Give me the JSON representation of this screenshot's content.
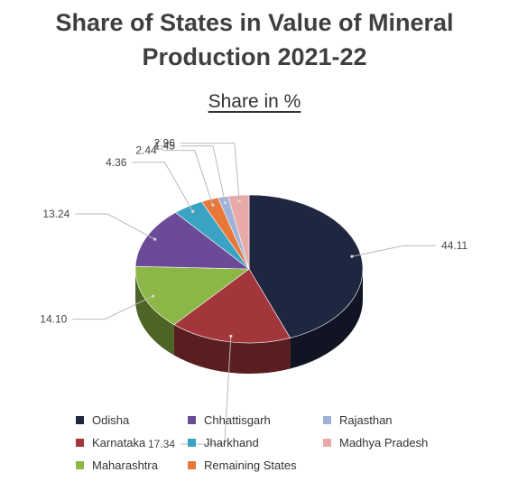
{
  "chart_data": {
    "type": "pie",
    "title": "Share of States in Value of Mineral Production 2021-22",
    "title_lines": [
      "Share of States in Value of Mineral",
      "Production 2021-22"
    ],
    "subtitle": "Share in %",
    "slices": [
      {
        "label": "Odisha",
        "value": 44.11,
        "value_text": "44.11",
        "color": "#1f2640"
      },
      {
        "label": "Karnataka",
        "value": 17.34,
        "value_text": "17.34",
        "color": "#a3363a"
      },
      {
        "label": "Maharashtra",
        "value": 14.1,
        "value_text": "14.10",
        "color": "#8cb646"
      },
      {
        "label": "Chhattisgarh",
        "value": 13.24,
        "value_text": "13.24",
        "color": "#6b4a98"
      },
      {
        "label": "Jharkhand",
        "value": 4.36,
        "value_text": "4.36",
        "color": "#3aa3c4"
      },
      {
        "label": "Remaining States",
        "value": 2.44,
        "value_text": "2.44",
        "color": "#e9773a"
      },
      {
        "label": "Rajasthan",
        "value": 1.45,
        "value_text": "1.45",
        "color": "#9fb3d8"
      },
      {
        "label": "Madhya Pradesh",
        "value": 2.96,
        "value_text": "2.96",
        "color": "#e8a9a9"
      }
    ],
    "legend_placement": "bottom"
  }
}
